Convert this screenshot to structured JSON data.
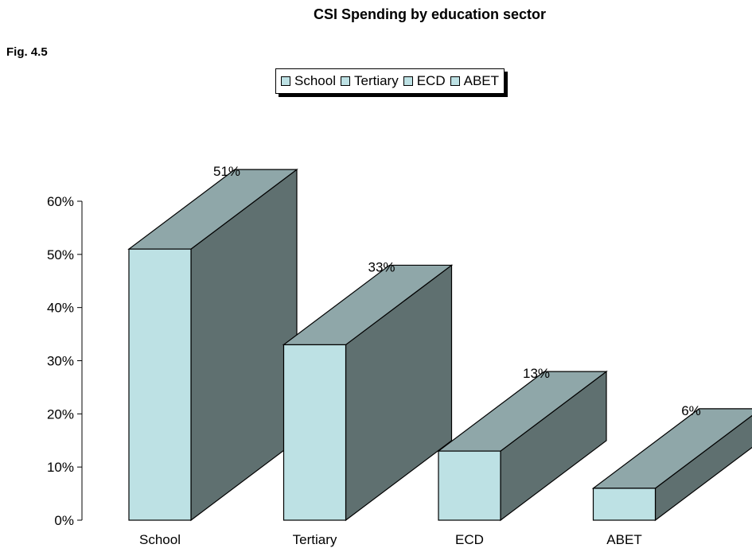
{
  "chart_data": {
    "type": "bar",
    "title": "CSI Spending by education sector",
    "figure_label": "Fig. 4.5",
    "categories": [
      "School",
      "Tertiary",
      "ECD",
      "ABET"
    ],
    "values": [
      51,
      33,
      13,
      6
    ],
    "value_labels": [
      "51%",
      "33%",
      "13%",
      "6%"
    ],
    "ylim": [
      0,
      60
    ],
    "yticks": [
      0,
      10,
      20,
      30,
      40,
      50,
      60
    ],
    "ytick_labels": [
      "0%",
      "10%",
      "20%",
      "30%",
      "40%",
      "50%",
      "60%"
    ],
    "legend": [
      "School",
      "Tertiary",
      "ECD",
      "ABET"
    ],
    "legend_position": "top-center",
    "three_d": true,
    "grid": false,
    "colors": {
      "front": "#bde1e4",
      "top": "#8fa7a9",
      "side": "#5f7070"
    }
  }
}
